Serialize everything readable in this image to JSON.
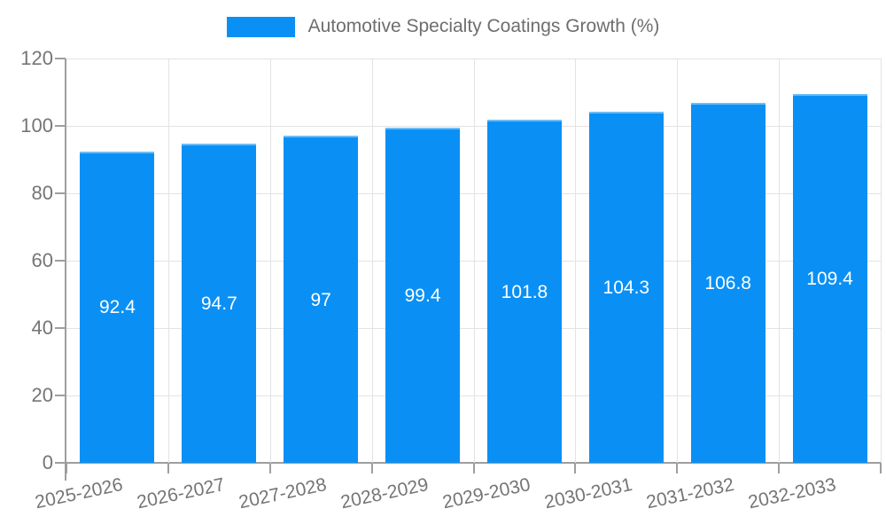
{
  "legend": {
    "label": "Automotive Specialty Coatings Growth (%)"
  },
  "colors": {
    "bar": "#0A90F5",
    "bar_top_edge": "rgba(255,255,255,0.4)",
    "axis": "#9e9e9e",
    "grid": "#e3e3e3",
    "tick_label": "#757575",
    "legend_text": "#6e6e6e",
    "value_label": "#ffffff"
  },
  "chart_data": {
    "type": "bar",
    "title": "Automotive Specialty Coatings Growth (%)",
    "categories": [
      "2025-2026",
      "2026-2027",
      "2027-2028",
      "2028-2029",
      "2029-2030",
      "2030-2031",
      "2031-2032",
      "2032-2033"
    ],
    "values": [
      92.4,
      94.7,
      97,
      99.4,
      101.8,
      104.3,
      106.8,
      109.4
    ],
    "value_labels": [
      "92.4",
      "94.7",
      "97",
      "99.4",
      "101.8",
      "104.3",
      "106.8",
      "109.4"
    ],
    "xlabel": "",
    "ylabel": "",
    "ylim": [
      0,
      120
    ],
    "yticks": [
      0,
      20,
      40,
      60,
      80,
      100,
      120
    ],
    "grid": true,
    "legend_position": "top",
    "bar_label_position": "middle",
    "x_label_rotation_deg": -12
  }
}
